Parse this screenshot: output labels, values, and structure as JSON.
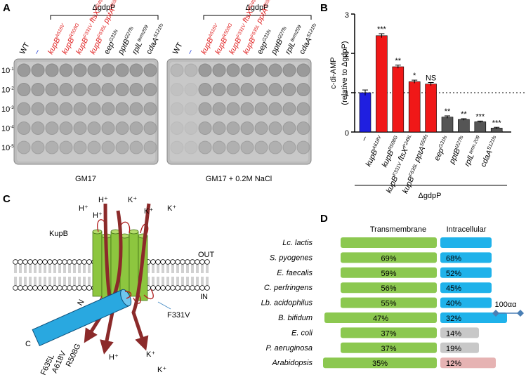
{
  "panel_a": {
    "letter": "A",
    "strain_group": "ΔgdpP",
    "lanes": [
      [
        [
          "WT",
          null
        ]
      ],
      [
        [
          "–",
          null
        ]
      ],
      [
        [
          "kupB",
          "A618V"
        ]
      ],
      [
        [
          "kupB",
          "R508G"
        ]
      ],
      [
        [
          "kupB",
          "F331V"
        ],
        [
          " ftsX",
          "P249L"
        ]
      ],
      [
        [
          "kupB",
          "F635L"
        ],
        [
          " pptA",
          "S55fs"
        ]
      ],
      [
        [
          "eep",
          "G31fs"
        ]
      ],
      [
        [
          "pptB",
          "I227fs"
        ]
      ],
      [
        [
          "rplL",
          "term209"
        ]
      ],
      [
        [
          "cdaA",
          "S121fs"
        ]
      ]
    ],
    "lane_colors": [
      "#000000",
      "#1f3bd6",
      "#e02020",
      "#e02020",
      "#e02020",
      "#e02020",
      "#000000",
      "#000000",
      "#000000",
      "#000000"
    ],
    "dilutions": [
      [
        "10",
        "-1"
      ],
      [
        "10",
        "-2"
      ],
      [
        "10",
        "-3"
      ],
      [
        "10",
        "-4"
      ],
      [
        "10",
        "-5"
      ]
    ],
    "plates": [
      "GM17",
      "GM17 + 0.2M NaCl"
    ]
  },
  "chart_data": {
    "type": "bar",
    "letter": "B",
    "ylabel": [
      "c-di-AMP",
      "(relative to ΔgdpP)"
    ],
    "group_label": "ΔgdpP",
    "categories": [
      [
        [
          "–",
          null
        ]
      ],
      [
        [
          "kupB",
          "A618V"
        ]
      ],
      [
        [
          "kupB",
          "R508G"
        ]
      ],
      [
        [
          "kupB",
          "F331V"
        ],
        [
          " ftsX",
          "P249L"
        ]
      ],
      [
        [
          "kupB",
          "F635L"
        ],
        [
          " pptA",
          "S55fs"
        ]
      ],
      [
        [
          "eep",
          "G31fs"
        ]
      ],
      [
        [
          "pptB",
          "I227fs"
        ]
      ],
      [
        [
          "rplL",
          "term.209"
        ]
      ],
      [
        [
          "cdaA",
          "S121fs"
        ]
      ]
    ],
    "values": [
      1.0,
      2.45,
      1.66,
      1.28,
      1.22,
      0.38,
      0.32,
      0.26,
      0.1
    ],
    "errors": [
      0.07,
      0.05,
      0.04,
      0.04,
      0.04,
      0.03,
      0.02,
      0.02,
      0.02
    ],
    "significance": [
      null,
      "***",
      "**",
      "*",
      "NS",
      "**",
      "**",
      "***",
      "***"
    ],
    "colors": [
      "#1f1fe0",
      "#f01818",
      "#f01818",
      "#f01818",
      "#f01818",
      "#555555",
      "#555555",
      "#555555",
      "#555555"
    ],
    "ylim": [
      0,
      3
    ],
    "yticks": [
      0,
      1,
      2,
      3
    ],
    "reference_line": 1
  },
  "panel_c": {
    "letter": "C",
    "protein": "KupB",
    "out": "OUT",
    "in": "IN",
    "n_term": "N",
    "c_term": "C",
    "mutations": [
      "F331V",
      "F635L",
      "A618V",
      "R508G"
    ],
    "ions": [
      "H⁺",
      "H⁺",
      "H⁺",
      "K⁺",
      "K⁺",
      "K⁺",
      "H⁺",
      "K⁺",
      "K⁺"
    ]
  },
  "panel_d": {
    "letter": "D",
    "headers": [
      "Transmembrane",
      "Intracellular"
    ],
    "rows": [
      {
        "organism": "Lc. lactis",
        "tm": null,
        "ic": null
      },
      {
        "organism": "S. pyogenes",
        "tm": "69%",
        "ic": "68%"
      },
      {
        "organism": "E. faecalis",
        "tm": "59%",
        "ic": "52%"
      },
      {
        "organism": "C. perfringens",
        "tm": "56%",
        "ic": "45%"
      },
      {
        "organism": "Lb. acidophilus",
        "tm": "55%",
        "ic": "40%"
      },
      {
        "organism": "B. bifidum",
        "tm": "47%",
        "ic": "32%"
      },
      {
        "organism": "E. coli",
        "tm": "37%",
        "ic": "14%"
      },
      {
        "organism": "P. aeruginosa",
        "tm": "37%",
        "ic": "19%"
      },
      {
        "organism": "Arabidopsis",
        "tm": "35%",
        "ic": "12%"
      }
    ],
    "scale": "100αα"
  }
}
